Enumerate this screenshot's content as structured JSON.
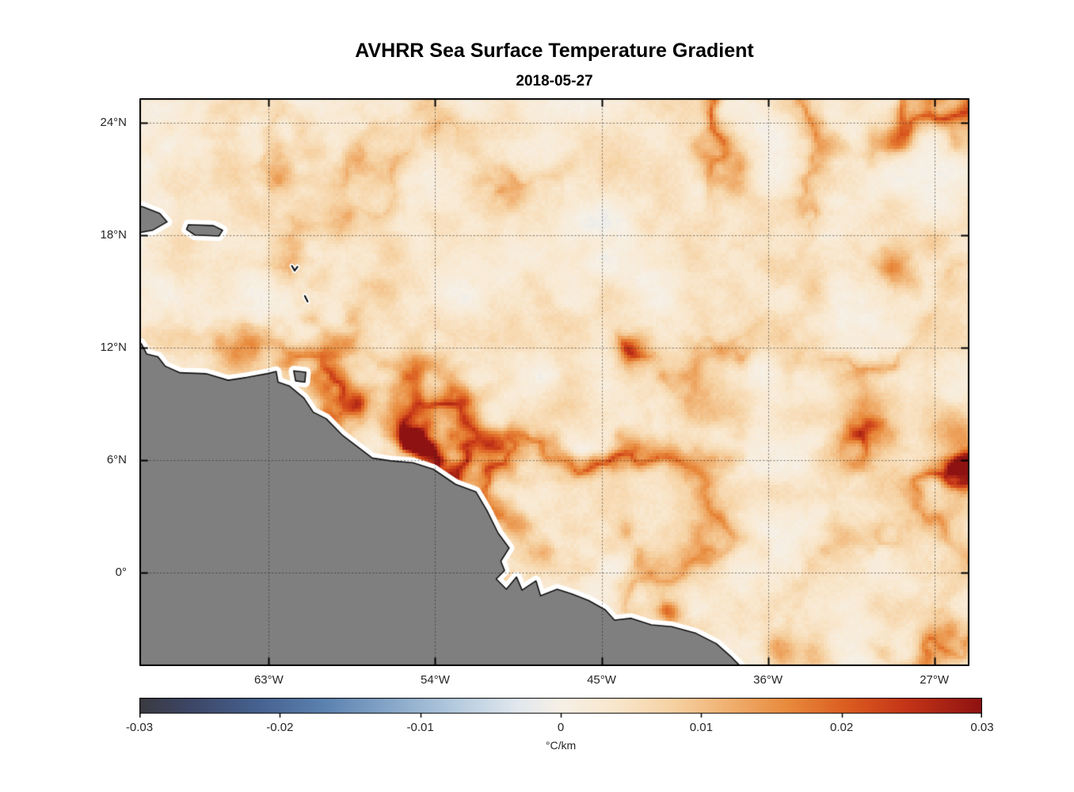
{
  "figure": {
    "title": "AVHRR Sea Surface Temperature Gradient",
    "subtitle": "2018-05-27"
  },
  "chart_data": {
    "type": "heatmap",
    "title": "AVHRR Sea Surface Temperature Gradient",
    "subtitle": "2018-05-27",
    "x_axis": {
      "tick_labels": [
        "63°W",
        "54°W",
        "45°W",
        "36°W",
        "27°W"
      ],
      "tick_lons": [
        -63,
        -54,
        -45,
        -36,
        -27
      ],
      "range_lon": [
        -70.0,
        -25.1
      ]
    },
    "y_axis": {
      "tick_labels": [
        "24°N",
        "18°N",
        "12°N",
        "6°N",
        "0°"
      ],
      "tick_lats": [
        24,
        18,
        12,
        6,
        0
      ],
      "range_lat": [
        -5.0,
        25.3
      ]
    },
    "grid": "dotted",
    "colorbar": {
      "label": "°C/km",
      "min": -0.03,
      "max": 0.03,
      "tick_values": [
        -0.03,
        -0.02,
        -0.01,
        0,
        0.01,
        0.02,
        0.03
      ],
      "tick_labels": [
        "-0.03",
        "-0.02",
        "-0.01",
        "0",
        "0.01",
        "0.02",
        "0.03"
      ]
    },
    "colormap": {
      "stops": [
        [
          0.0,
          "#3a3a40"
        ],
        [
          0.06,
          "#3d4666"
        ],
        [
          0.14,
          "#46618f"
        ],
        [
          0.22,
          "#5c82b0"
        ],
        [
          0.3,
          "#88a8c9"
        ],
        [
          0.38,
          "#b8cde0"
        ],
        [
          0.45,
          "#e2e8ee"
        ],
        [
          0.5,
          "#f6f0e6"
        ],
        [
          0.56,
          "#f9e8cf"
        ],
        [
          0.63,
          "#f6d3a5"
        ],
        [
          0.7,
          "#f0b070"
        ],
        [
          0.77,
          "#e88a3c"
        ],
        [
          0.84,
          "#db5c20"
        ],
        [
          0.91,
          "#c43517"
        ],
        [
          1.0,
          "#8e1212"
        ]
      ]
    },
    "land_color": "#7f7f7f",
    "coast_halo_color": "#ffffff",
    "coast_line_color": "#111111",
    "ocean_background_value": 0.003,
    "strong_fronts": [
      {
        "lon": -64.6,
        "lat": 11.85,
        "sigma_deg": 0.75,
        "intensity": 0.03
      },
      {
        "lon": -62.3,
        "lat": 21.3,
        "sigma_deg": 0.65,
        "intensity": 0.016
      },
      {
        "lon": -59.0,
        "lat": 18.6,
        "sigma_deg": 0.6,
        "intensity": 0.014
      },
      {
        "lon": -56.3,
        "lat": 16.9,
        "sigma_deg": 0.6,
        "intensity": 0.012
      },
      {
        "lon": -55.0,
        "lat": 6.9,
        "sigma_deg": 0.7,
        "intensity": 0.022
      },
      {
        "lon": -58.2,
        "lat": 9.2,
        "sigma_deg": 0.5,
        "intensity": 0.014
      },
      {
        "lon": -43.4,
        "lat": 12.0,
        "sigma_deg": 0.7,
        "intensity": 0.024
      },
      {
        "lon": -39.5,
        "lat": 9.6,
        "sigma_deg": 1.1,
        "intensity": 0.018
      },
      {
        "lon": -46.8,
        "lat": 9.0,
        "sigma_deg": 0.8,
        "intensity": 0.013
      },
      {
        "lon": -30.6,
        "lat": 8.2,
        "sigma_deg": 1.0,
        "intensity": 0.028
      },
      {
        "lon": -25.6,
        "lat": 7.6,
        "sigma_deg": 0.8,
        "intensity": 0.026
      },
      {
        "lon": -25.4,
        "lat": 5.9,
        "sigma_deg": 0.7,
        "intensity": 0.026
      },
      {
        "lon": -27.1,
        "lat": 17.9,
        "sigma_deg": 0.7,
        "intensity": 0.014
      },
      {
        "lon": -29.4,
        "lat": 15.9,
        "sigma_deg": 0.9,
        "intensity": 0.015
      },
      {
        "lon": -49.5,
        "lat": 2.6,
        "sigma_deg": 0.5,
        "intensity": 0.022
      },
      {
        "lon": -41.3,
        "lat": -2.1,
        "sigma_deg": 0.4,
        "intensity": 0.022
      },
      {
        "lon": -35.3,
        "lat": -4.3,
        "sigma_deg": 0.6,
        "intensity": 0.026
      },
      {
        "lon": -33.6,
        "lat": -4.6,
        "sigma_deg": 0.9,
        "intensity": 0.018
      },
      {
        "lon": -50.1,
        "lat": 20.6,
        "sigma_deg": 1.1,
        "intensity": 0.012
      },
      {
        "lon": -37.6,
        "lat": 20.8,
        "sigma_deg": 0.7,
        "intensity": 0.012
      }
    ],
    "land_polygons": [
      {
        "name": "south-america-northeast-coast",
        "points": [
          [
            -71.0,
            12.3
          ],
          [
            -69.9,
            12.2
          ],
          [
            -69.6,
            11.65
          ],
          [
            -69.0,
            11.5
          ],
          [
            -68.6,
            11.0
          ],
          [
            -67.8,
            10.65
          ],
          [
            -66.4,
            10.6
          ],
          [
            -65.2,
            10.25
          ],
          [
            -64.2,
            10.4
          ],
          [
            -63.1,
            10.6
          ],
          [
            -62.6,
            10.72
          ],
          [
            -62.5,
            10.15
          ],
          [
            -61.9,
            9.95
          ],
          [
            -61.1,
            9.3
          ],
          [
            -60.6,
            8.55
          ],
          [
            -59.9,
            8.2
          ],
          [
            -59.0,
            7.3
          ],
          [
            -58.4,
            6.85
          ],
          [
            -57.4,
            6.1
          ],
          [
            -56.4,
            5.95
          ],
          [
            -55.2,
            5.85
          ],
          [
            -54.1,
            5.5
          ],
          [
            -52.9,
            4.7
          ],
          [
            -51.8,
            4.3
          ],
          [
            -51.2,
            3.3
          ],
          [
            -50.6,
            2.1
          ],
          [
            -50.0,
            1.3
          ],
          [
            -50.45,
            0.6
          ],
          [
            -50.25,
            0.1
          ],
          [
            -50.7,
            -0.35
          ],
          [
            -50.15,
            -0.9
          ],
          [
            -49.6,
            -0.25
          ],
          [
            -49.3,
            -0.95
          ],
          [
            -48.55,
            -0.45
          ],
          [
            -48.3,
            -1.25
          ],
          [
            -47.4,
            -0.9
          ],
          [
            -46.6,
            -1.15
          ],
          [
            -45.7,
            -1.5
          ],
          [
            -44.8,
            -2.0
          ],
          [
            -44.3,
            -2.55
          ],
          [
            -43.4,
            -2.45
          ],
          [
            -42.3,
            -2.8
          ],
          [
            -41.2,
            -2.9
          ],
          [
            -39.9,
            -3.25
          ],
          [
            -38.8,
            -3.8
          ],
          [
            -38.0,
            -4.5
          ],
          [
            -37.4,
            -5.1
          ],
          [
            -37.0,
            -6.5
          ],
          [
            -71.0,
            -6.5
          ]
        ]
      },
      {
        "name": "hispaniola-east",
        "points": [
          [
            -71.0,
            19.8
          ],
          [
            -69.8,
            19.5
          ],
          [
            -68.9,
            19.15
          ],
          [
            -68.5,
            18.7
          ],
          [
            -69.3,
            18.25
          ],
          [
            -70.2,
            18.1
          ],
          [
            -71.0,
            18.3
          ]
        ]
      },
      {
        "name": "puerto-rico",
        "points": [
          [
            -67.35,
            18.55
          ],
          [
            -66.0,
            18.5
          ],
          [
            -65.5,
            18.25
          ],
          [
            -65.7,
            17.95
          ],
          [
            -67.0,
            18.0
          ],
          [
            -67.45,
            18.3
          ]
        ]
      },
      {
        "name": "trinidad",
        "points": [
          [
            -61.65,
            10.75
          ],
          [
            -61.0,
            10.68
          ],
          [
            -61.05,
            10.15
          ],
          [
            -61.55,
            10.22
          ]
        ]
      }
    ],
    "islets": [
      [
        [
          -61.75,
          16.35
        ],
        [
          -61.6,
          16.1
        ],
        [
          -61.45,
          16.3
        ]
      ],
      [
        [
          -61.05,
          14.75
        ],
        [
          -60.9,
          14.45
        ]
      ]
    ]
  }
}
